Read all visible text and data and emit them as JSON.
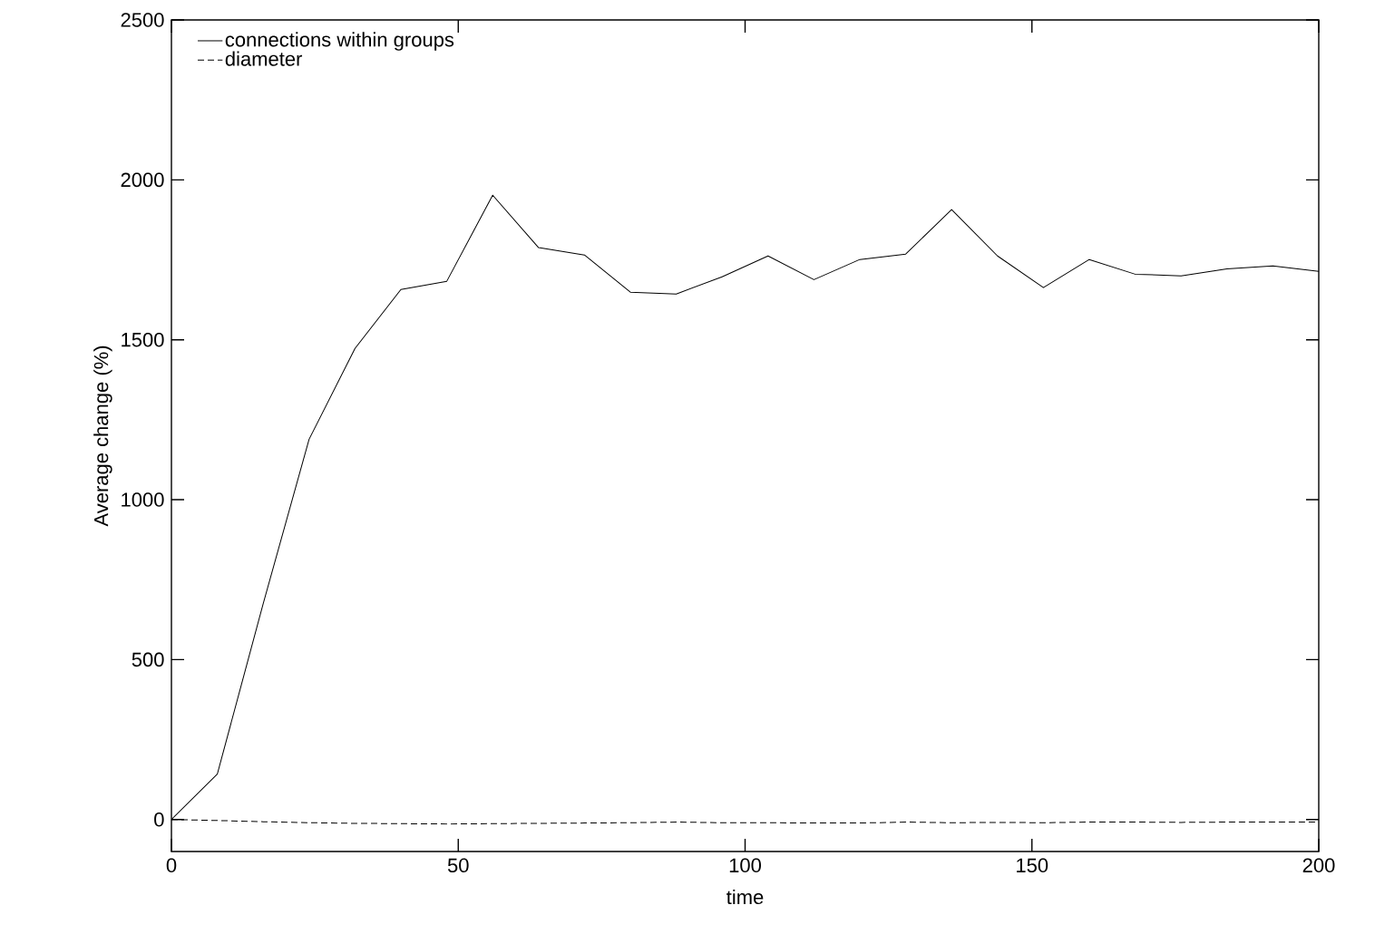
{
  "chart_data": {
    "type": "line",
    "xlabel": "time",
    "ylabel": "Average change (%)",
    "x": [
      0,
      8,
      16,
      24,
      32,
      40,
      48,
      56,
      64,
      72,
      80,
      88,
      96,
      104,
      112,
      120,
      128,
      136,
      144,
      152,
      160,
      168,
      176,
      184,
      192,
      200
    ],
    "series": [
      {
        "name": "connections within groups",
        "color": "#000000",
        "line_style": "solid",
        "values": [
          0,
          142,
          675,
          1189,
          1473,
          1657,
          1683,
          1952,
          1788,
          1765,
          1649,
          1643,
          1697,
          1762,
          1688,
          1751,
          1768,
          1907,
          1762,
          1663,
          1751,
          1705,
          1700,
          1722,
          1731,
          1714
        ]
      },
      {
        "name": "diameter",
        "color": "#000000",
        "line_style": "dashed",
        "values": [
          0,
          -3,
          -7,
          -10,
          -12,
          -13,
          -14,
          -13,
          -12,
          -11,
          -10,
          -8,
          -10,
          -10,
          -11,
          -11,
          -8,
          -10,
          -9,
          -10,
          -8,
          -8,
          -9,
          -8,
          -8,
          -8
        ]
      }
    ],
    "xlim": [
      0,
      200
    ],
    "ylim": [
      -100,
      2500
    ],
    "xticks": [
      0,
      50,
      100,
      150,
      200
    ],
    "yticks": [
      0,
      500,
      1000,
      1500,
      2000,
      2500
    ],
    "grid": false,
    "legend": "top left",
    "marker": "none"
  }
}
